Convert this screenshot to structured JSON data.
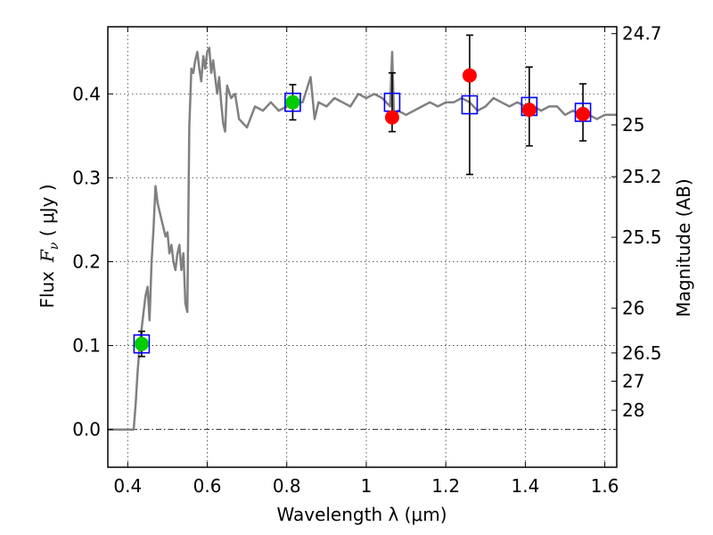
{
  "chart_data": {
    "type": "scatter",
    "title": "",
    "xlabel": "Wavelength  λ (μm)",
    "ylabel_prefix": "Flux",
    "ylabel_var": "F",
    "ylabel_sub": "ν",
    "ylabel_unit": " ( μJy )",
    "y2label": "Magnitude (AB)",
    "xlim": [
      0.35,
      1.63
    ],
    "ylim": [
      -0.045,
      0.48
    ],
    "grid": true,
    "xticks": [
      0.4,
      0.6,
      0.8,
      1.0,
      1.2,
      1.4,
      1.6
    ],
    "xtick_labels": [
      "0.4",
      "0.6",
      "0.8",
      "1",
      "1.2",
      "1.4",
      "1.6"
    ],
    "yticks": [
      0.0,
      0.1,
      0.2,
      0.3,
      0.4
    ],
    "ytick_labels": [
      "0.0",
      "0.1",
      "0.2",
      "0.3",
      "0.4"
    ],
    "y2ticks": [
      {
        "flux": 0.4718,
        "label": "24.7"
      },
      {
        "flux": 0.3631,
        "label": "25"
      },
      {
        "flux": 0.3013,
        "label": "25.2"
      },
      {
        "flux": 0.2291,
        "label": "25.5"
      },
      {
        "flux": 0.1445,
        "label": "26"
      },
      {
        "flux": 0.0912,
        "label": "26.5"
      },
      {
        "flux": 0.0575,
        "label": "27"
      },
      {
        "flux": 0.0229,
        "label": "28"
      }
    ],
    "spectrum": {
      "color": "#808080",
      "x": [
        0.35,
        0.415,
        0.42,
        0.425,
        0.43,
        0.435,
        0.44,
        0.445,
        0.45,
        0.455,
        0.46,
        0.465,
        0.47,
        0.475,
        0.48,
        0.485,
        0.49,
        0.495,
        0.5,
        0.505,
        0.51,
        0.515,
        0.52,
        0.525,
        0.53,
        0.535,
        0.54,
        0.545,
        0.55,
        0.555,
        0.56,
        0.565,
        0.57,
        0.575,
        0.58,
        0.585,
        0.59,
        0.595,
        0.6,
        0.605,
        0.61,
        0.615,
        0.62,
        0.625,
        0.63,
        0.635,
        0.64,
        0.645,
        0.65,
        0.66,
        0.67,
        0.68,
        0.69,
        0.7,
        0.72,
        0.74,
        0.76,
        0.78,
        0.8,
        0.82,
        0.84,
        0.86,
        0.87,
        0.88,
        0.9,
        0.92,
        0.94,
        0.96,
        0.98,
        1.0,
        1.02,
        1.04,
        1.06,
        1.065,
        1.07,
        1.08,
        1.1,
        1.12,
        1.14,
        1.16,
        1.18,
        1.2,
        1.22,
        1.24,
        1.26,
        1.28,
        1.3,
        1.32,
        1.34,
        1.36,
        1.38,
        1.4,
        1.42,
        1.44,
        1.46,
        1.48,
        1.5,
        1.52,
        1.54,
        1.56,
        1.58,
        1.6,
        1.63
      ],
      "y": [
        0.0,
        0.0,
        0.03,
        0.07,
        0.1,
        0.12,
        0.14,
        0.16,
        0.17,
        0.13,
        0.2,
        0.24,
        0.29,
        0.27,
        0.26,
        0.25,
        0.24,
        0.23,
        0.235,
        0.21,
        0.22,
        0.2,
        0.19,
        0.21,
        0.22,
        0.19,
        0.21,
        0.15,
        0.14,
        0.36,
        0.43,
        0.425,
        0.44,
        0.45,
        0.43,
        0.415,
        0.445,
        0.43,
        0.45,
        0.455,
        0.425,
        0.44,
        0.42,
        0.4,
        0.42,
        0.39,
        0.365,
        0.355,
        0.41,
        0.395,
        0.4,
        0.37,
        0.365,
        0.36,
        0.385,
        0.38,
        0.39,
        0.38,
        0.385,
        0.39,
        0.39,
        0.42,
        0.37,
        0.39,
        0.385,
        0.395,
        0.39,
        0.385,
        0.4,
        0.395,
        0.4,
        0.395,
        0.385,
        0.45,
        0.37,
        0.38,
        0.375,
        0.38,
        0.385,
        0.39,
        0.385,
        0.39,
        0.39,
        0.395,
        0.39,
        0.38,
        0.385,
        0.395,
        0.39,
        0.385,
        0.39,
        0.385,
        0.385,
        0.38,
        0.385,
        0.385,
        0.375,
        0.38,
        0.375,
        0.375,
        0.37,
        0.375,
        0.375
      ]
    },
    "series": [
      {
        "marker": "open-square",
        "color": "#0000ff",
        "x": [
          0.435,
          0.815,
          1.065,
          1.26,
          1.41,
          1.545
        ],
        "y": [
          0.102,
          0.39,
          0.39,
          0.387,
          0.385,
          0.378
        ],
        "yerr": [
          0.015,
          0.021,
          0.035,
          0.083,
          0.047,
          0.034
        ]
      },
      {
        "marker": "filled-circle",
        "color": "#00cc00",
        "x": [
          0.435,
          0.815
        ],
        "y": [
          0.102,
          0.39
        ]
      },
      {
        "marker": "filled-circle",
        "color": "#ff0000",
        "x": [
          1.065,
          1.26,
          1.41,
          1.545
        ],
        "y": [
          0.372,
          0.422,
          0.381,
          0.376
        ]
      }
    ],
    "reference_line": {
      "y": 0.0,
      "style": "dash-dot"
    }
  }
}
